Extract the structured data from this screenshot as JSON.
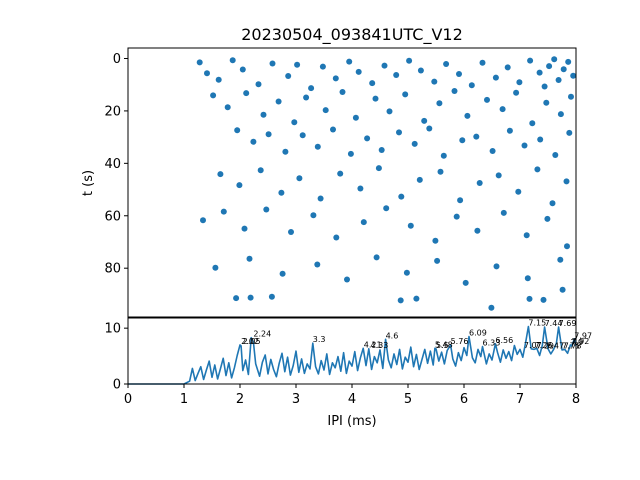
{
  "colors": {
    "series": "#1f77b4",
    "axes": "#000000",
    "background": "#ffffff"
  },
  "chart_data": [
    {
      "type": "scatter",
      "title": "20230504_093841UTC_V12",
      "xlabel": "",
      "ylabel": "t (s)",
      "xlim": [
        0,
        8
      ],
      "ylim": [
        99,
        -4
      ],
      "y_inverted": true,
      "yticks": [
        0,
        20,
        40,
        60,
        80
      ],
      "grid": false,
      "points": [
        [
          1.28,
          1.5
        ],
        [
          1.41,
          5.6
        ],
        [
          1.62,
          8.1
        ],
        [
          1.87,
          0.7
        ],
        [
          2.05,
          4.2
        ],
        [
          2.33,
          9.8
        ],
        [
          2.58,
          1.9
        ],
        [
          2.86,
          6.7
        ],
        [
          3.02,
          2.4
        ],
        [
          3.27,
          11.3
        ],
        [
          3.48,
          3.1
        ],
        [
          3.71,
          7.6
        ],
        [
          3.95,
          1.2
        ],
        [
          4.12,
          5.1
        ],
        [
          4.36,
          9.4
        ],
        [
          4.58,
          2.7
        ],
        [
          4.79,
          6.3
        ],
        [
          5.02,
          0.9
        ],
        [
          5.23,
          4.6
        ],
        [
          5.47,
          8.8
        ],
        [
          5.68,
          2.1
        ],
        [
          5.91,
          5.9
        ],
        [
          6.14,
          10.2
        ],
        [
          6.33,
          1.6
        ],
        [
          6.57,
          7.3
        ],
        [
          6.78,
          3.4
        ],
        [
          6.99,
          9.1
        ],
        [
          7.18,
          0.8
        ],
        [
          7.35,
          5.4
        ],
        [
          7.52,
          2.9
        ],
        [
          7.69,
          8.2
        ],
        [
          7.86,
          1.3
        ],
        [
          7.95,
          6.6
        ],
        [
          7.61,
          0.3
        ],
        [
          7.78,
          4.1
        ],
        [
          7.44,
          10.7
        ],
        [
          1.52,
          14.1
        ],
        [
          1.78,
          18.6
        ],
        [
          2.11,
          13.2
        ],
        [
          2.42,
          21.5
        ],
        [
          2.69,
          16.4
        ],
        [
          2.97,
          24.3
        ],
        [
          3.18,
          14.9
        ],
        [
          3.53,
          19.7
        ],
        [
          3.83,
          12.8
        ],
        [
          4.07,
          22.6
        ],
        [
          4.42,
          15.3
        ],
        [
          4.67,
          20.2
        ],
        [
          4.95,
          13.7
        ],
        [
          5.29,
          23.8
        ],
        [
          5.56,
          17.1
        ],
        [
          5.83,
          12.4
        ],
        [
          6.06,
          21.9
        ],
        [
          6.41,
          15.8
        ],
        [
          6.69,
          19.3
        ],
        [
          6.93,
          13.1
        ],
        [
          7.22,
          24.7
        ],
        [
          7.47,
          16.9
        ],
        [
          7.73,
          21.2
        ],
        [
          7.91,
          14.6
        ],
        [
          1.95,
          27.4
        ],
        [
          2.24,
          31.8
        ],
        [
          2.51,
          28.9
        ],
        [
          2.81,
          35.6
        ],
        [
          3.12,
          29.3
        ],
        [
          3.39,
          33.7
        ],
        [
          3.66,
          27.1
        ],
        [
          3.98,
          36.4
        ],
        [
          4.27,
          30.5
        ],
        [
          4.53,
          34.9
        ],
        [
          4.84,
          28.2
        ],
        [
          5.12,
          32.6
        ],
        [
          5.38,
          26.7
        ],
        [
          5.64,
          37.1
        ],
        [
          5.97,
          31.2
        ],
        [
          6.22,
          29.8
        ],
        [
          6.51,
          35.3
        ],
        [
          6.82,
          27.6
        ],
        [
          7.08,
          33.2
        ],
        [
          7.36,
          30.9
        ],
        [
          7.63,
          36.8
        ],
        [
          7.88,
          28.4
        ],
        [
          1.65,
          44.1
        ],
        [
          1.99,
          48.3
        ],
        [
          2.37,
          42.6
        ],
        [
          2.74,
          51.2
        ],
        [
          3.06,
          45.7
        ],
        [
          3.44,
          53.4
        ],
        [
          3.79,
          43.9
        ],
        [
          4.15,
          49.6
        ],
        [
          4.48,
          41.8
        ],
        [
          4.88,
          52.7
        ],
        [
          5.21,
          46.3
        ],
        [
          5.58,
          43.2
        ],
        [
          5.93,
          54.1
        ],
        [
          6.28,
          47.5
        ],
        [
          6.62,
          44.6
        ],
        [
          6.97,
          50.8
        ],
        [
          7.31,
          42.3
        ],
        [
          7.58,
          55.2
        ],
        [
          7.83,
          46.9
        ],
        [
          1.34,
          61.7
        ],
        [
          1.71,
          58.4
        ],
        [
          2.08,
          64.9
        ],
        [
          2.47,
          57.6
        ],
        [
          2.91,
          66.2
        ],
        [
          3.31,
          59.8
        ],
        [
          3.72,
          68.3
        ],
        [
          4.21,
          62.4
        ],
        [
          4.61,
          57.1
        ],
        [
          5.05,
          63.8
        ],
        [
          5.49,
          69.5
        ],
        [
          5.87,
          60.3
        ],
        [
          6.24,
          65.7
        ],
        [
          6.71,
          58.9
        ],
        [
          7.12,
          67.4
        ],
        [
          7.49,
          61.2
        ],
        [
          7.84,
          71.6
        ],
        [
          1.56,
          79.8
        ],
        [
          2.17,
          76.4
        ],
        [
          2.76,
          82.1
        ],
        [
          3.38,
          78.6
        ],
        [
          3.91,
          84.3
        ],
        [
          4.44,
          75.9
        ],
        [
          4.98,
          81.7
        ],
        [
          5.52,
          77.2
        ],
        [
          6.03,
          85.6
        ],
        [
          6.58,
          79.3
        ],
        [
          7.14,
          83.8
        ],
        [
          7.72,
          76.8
        ],
        [
          1.93,
          91.4
        ],
        [
          2.19,
          91.2
        ],
        [
          2.57,
          90.9
        ],
        [
          4.87,
          92.3
        ],
        [
          5.15,
          91.6
        ],
        [
          6.49,
          95.1
        ],
        [
          7.17,
          91.7
        ],
        [
          7.42,
          92.1
        ],
        [
          7.76,
          88.2
        ]
      ]
    },
    {
      "type": "line",
      "title": "",
      "xlabel": "IPI (ms)",
      "ylabel": "",
      "xlim": [
        0,
        8
      ],
      "ylim": [
        0,
        12
      ],
      "xticks": [
        0,
        1,
        2,
        3,
        4,
        5,
        6,
        7,
        8
      ],
      "yticks": [
        0,
        10
      ],
      "grid": false,
      "x": [
        0,
        1.0,
        1.1,
        1.15,
        1.2,
        1.25,
        1.3,
        1.35,
        1.4,
        1.45,
        1.5,
        1.55,
        1.6,
        1.65,
        1.7,
        1.75,
        1.8,
        1.85,
        1.9,
        1.95,
        2.0,
        2.02,
        2.05,
        2.1,
        2.15,
        2.2,
        2.24,
        2.28,
        2.35,
        2.4,
        2.45,
        2.5,
        2.55,
        2.6,
        2.65,
        2.7,
        2.75,
        2.8,
        2.85,
        2.9,
        2.95,
        3.0,
        3.05,
        3.1,
        3.15,
        3.2,
        3.25,
        3.3,
        3.35,
        3.4,
        3.45,
        3.5,
        3.55,
        3.6,
        3.65,
        3.7,
        3.75,
        3.8,
        3.85,
        3.9,
        3.95,
        4.0,
        4.05,
        4.1,
        4.15,
        4.2,
        4.25,
        4.3,
        4.35,
        4.4,
        4.45,
        4.5,
        4.55,
        4.6,
        4.65,
        4.7,
        4.75,
        4.8,
        4.85,
        4.9,
        4.95,
        5.0,
        5.05,
        5.1,
        5.15,
        5.2,
        5.25,
        5.3,
        5.35,
        5.4,
        5.45,
        5.48,
        5.5,
        5.55,
        5.6,
        5.65,
        5.7,
        5.76,
        5.8,
        5.85,
        5.9,
        5.95,
        6.0,
        6.05,
        6.09,
        6.15,
        6.2,
        6.25,
        6.3,
        6.33,
        6.4,
        6.45,
        6.5,
        6.56,
        6.6,
        6.65,
        6.7,
        6.75,
        6.8,
        6.85,
        6.9,
        6.95,
        7.0,
        7.05,
        7.1,
        7.15,
        7.2,
        7.25,
        7.3,
        7.35,
        7.4,
        7.44,
        7.5,
        7.55,
        7.6,
        7.65,
        7.69,
        7.75,
        7.8,
        7.85,
        7.9,
        7.92,
        7.97,
        8.0
      ],
      "series": [
        {
          "values": [
            0,
            0,
            0.5,
            2.8,
            0.6,
            1.9,
            3.1,
            0.8,
            2.5,
            4.1,
            1.2,
            3.4,
            0.9,
            2.7,
            4.6,
            1.5,
            3.8,
            1.1,
            2.9,
            5.1,
            7.0,
            6.8,
            2.4,
            4.3,
            1.7,
            8.3,
            7.5,
            3.6,
            1.4,
            3.9,
            5.2,
            1.8,
            4.4,
            2.6,
            1.3,
            3.7,
            5.5,
            2.2,
            4.8,
            1.6,
            3.3,
            5.9,
            2.1,
            4.5,
            1.9,
            3.6,
            2.7,
            7.3,
            3.1,
            1.8,
            4.2,
            2.5,
            5.4,
            1.7,
            3.8,
            2.9,
            4.9,
            2.3,
            5.6,
            1.9,
            4.1,
            3.2,
            5.8,
            2.4,
            4.7,
            6.4,
            3.3,
            6.3,
            2.6,
            4.9,
            3.8,
            6.1,
            2.8,
            8.0,
            4.3,
            2.9,
            5.4,
            3.5,
            6.2,
            2.7,
            4.8,
            3.9,
            6.6,
            3.1,
            5.3,
            2.6,
            4.4,
            6.2,
            3.7,
            5.9,
            3.4,
            6.4,
            6.3,
            4.1,
            5.7,
            3.6,
            6.0,
            7.0,
            4.5,
            3.2,
            5.6,
            4.2,
            6.5,
            5.1,
            8.5,
            4.7,
            3.8,
            6.2,
            4.9,
            6.7,
            3.6,
            5.4,
            4.3,
            7.2,
            5.6,
            3.9,
            6.1,
            4.6,
            5.8,
            4.2,
            6.9,
            5.3,
            6.2,
            4.8,
            7.4,
            10.3,
            6.3,
            6.2,
            6.4,
            5.1,
            7.0,
            10.2,
            6.3,
            5.4,
            6.2,
            7.3,
            10.2,
            6.1,
            6.2,
            5.5,
            7.0,
            6.8,
            8.0,
            6.8
          ]
        }
      ],
      "annotations": [
        {
          "x": 2.02,
          "y": 7.0,
          "text": "2.02"
        },
        {
          "x": 2.05,
          "y": 7.0,
          "text": "2.05"
        },
        {
          "x": 2.24,
          "y": 8.3,
          "text": "2.24"
        },
        {
          "x": 3.3,
          "y": 7.3,
          "text": "3.3"
        },
        {
          "x": 4.21,
          "y": 6.4,
          "text": "4.21"
        },
        {
          "x": 4.33,
          "y": 6.3,
          "text": "4.33"
        },
        {
          "x": 4.6,
          "y": 8.0,
          "text": "4.6"
        },
        {
          "x": 5.48,
          "y": 6.4,
          "text": "5.48"
        },
        {
          "x": 5.5,
          "y": 6.3,
          "text": "5.5"
        },
        {
          "x": 5.76,
          "y": 7.0,
          "text": "5.76"
        },
        {
          "x": 6.09,
          "y": 8.5,
          "text": "6.09"
        },
        {
          "x": 6.33,
          "y": 6.7,
          "text": "6.33"
        },
        {
          "x": 6.56,
          "y": 7.2,
          "text": "6.56"
        },
        {
          "x": 7.07,
          "y": 6.3,
          "text": "7.07"
        },
        {
          "x": 7.15,
          "y": 10.3,
          "text": "7.15"
        },
        {
          "x": 7.26,
          "y": 6.3,
          "text": "7.26"
        },
        {
          "x": 7.29,
          "y": 6.2,
          "text": "7.29"
        },
        {
          "x": 7.44,
          "y": 10.2,
          "text": "7.44"
        },
        {
          "x": 7.47,
          "y": 6.2,
          "text": "7.47"
        },
        {
          "x": 7.69,
          "y": 10.2,
          "text": "7.69"
        },
        {
          "x": 7.75,
          "y": 6.2,
          "text": "7.75"
        },
        {
          "x": 7.78,
          "y": 6.2,
          "text": "7.78"
        },
        {
          "x": 7.9,
          "y": 6.8,
          "text": "7.9"
        },
        {
          "x": 7.92,
          "y": 7.0,
          "text": "7.92"
        },
        {
          "x": 7.97,
          "y": 8.0,
          "text": "7.97"
        }
      ]
    }
  ]
}
